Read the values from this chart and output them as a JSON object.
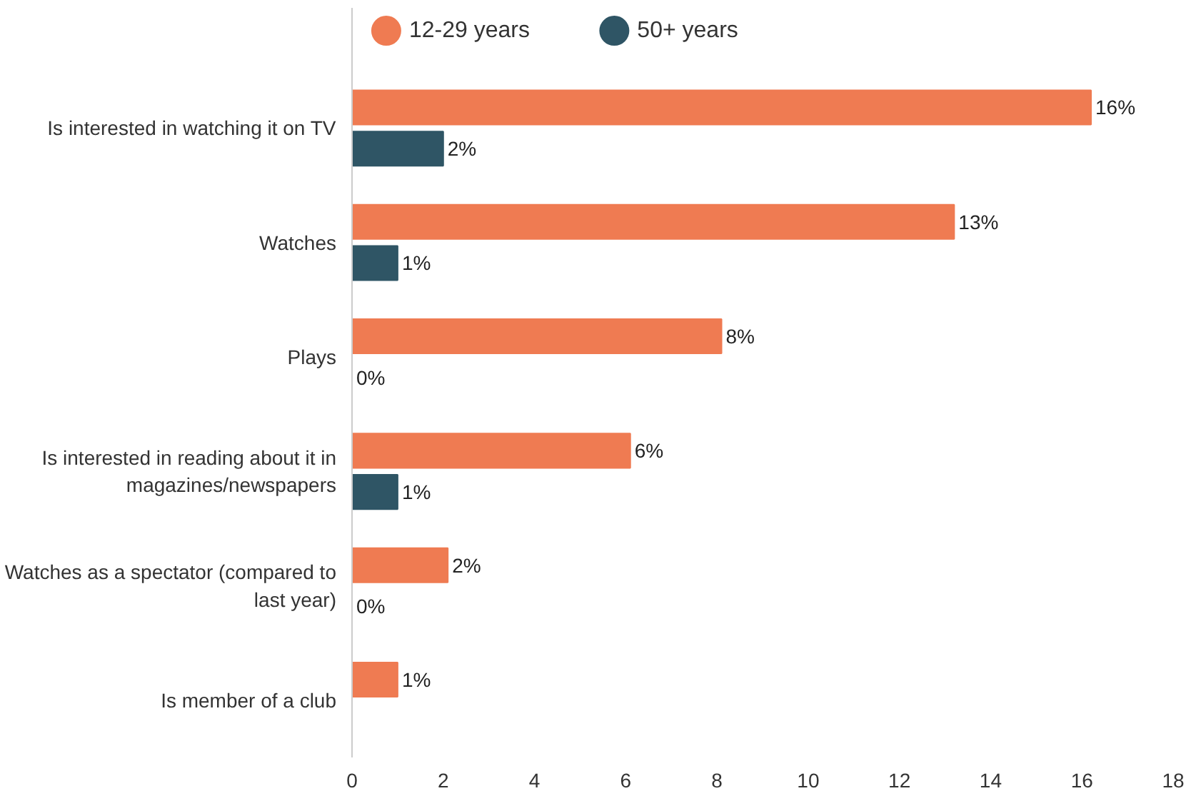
{
  "chart_data": {
    "type": "bar",
    "orientation": "horizontal",
    "categories": [
      "Is interested in watching it on TV",
      "Watches",
      "Plays",
      "Is interested in reading about it in magazines/newspapers",
      "Watches as a spectator (compared to last year)",
      "Is member of a club"
    ],
    "series": [
      {
        "name": "12-29 years",
        "color": "#ef7b52",
        "values": [
          16.2,
          13.2,
          8.1,
          6.1,
          2.1,
          1.0
        ],
        "value_labels": [
          "16%",
          "13%",
          "8%",
          "6%",
          "2%",
          "1%"
        ]
      },
      {
        "name": "50+ years",
        "color": "#2f5565",
        "values": [
          2.0,
          1.0,
          0,
          1.0,
          0,
          null
        ],
        "value_labels": [
          "2%",
          "1%",
          "0%",
          "1%",
          "0%",
          null
        ]
      }
    ],
    "xlim": [
      0,
      18
    ],
    "xticks": [
      0,
      2,
      4,
      6,
      8,
      10,
      12,
      14,
      16,
      18
    ],
    "grid": false,
    "legend": "top",
    "marker": "circle"
  }
}
